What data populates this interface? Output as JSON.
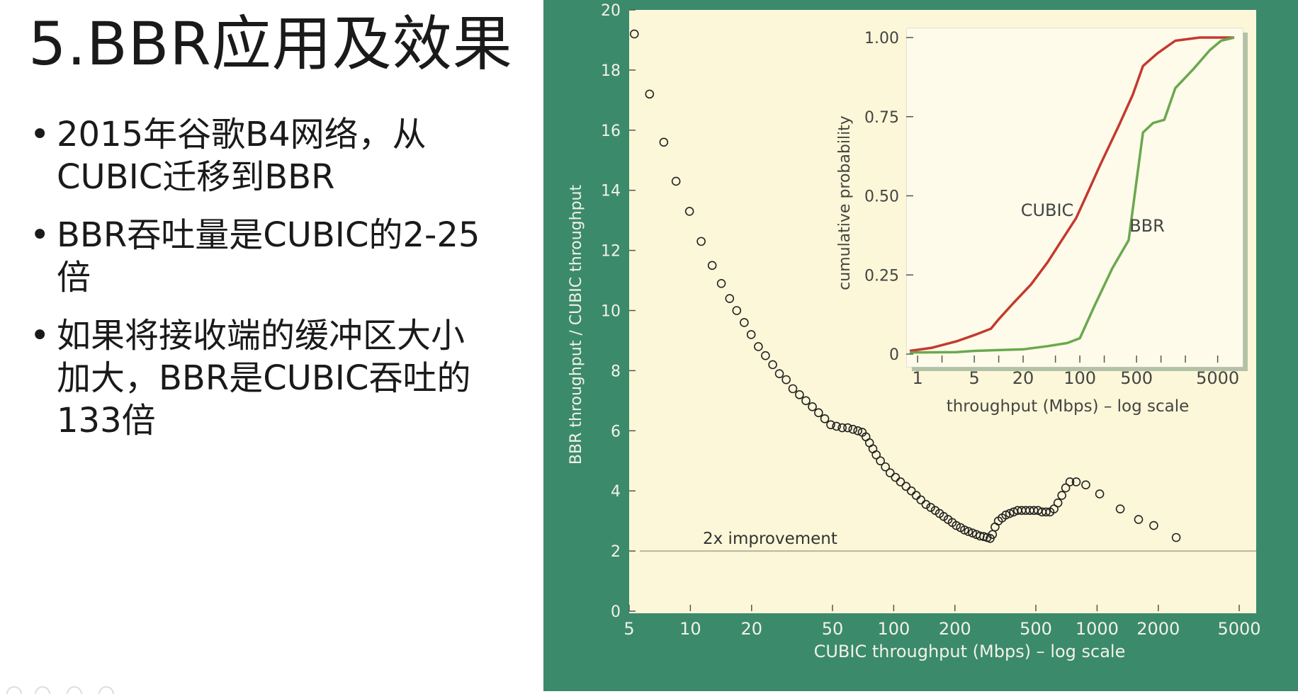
{
  "slide": {
    "title": "5.BBR应用及效果",
    "bullets": [
      "2015年谷歌B4网络，从CUBIC迁移到BBR",
      "BBR吞吐量是CUBIC的2-25倍",
      "如果将接收端的缓冲区大小加大，BBR是CUBIC吞吐的133倍"
    ]
  },
  "colors": {
    "frame": "#3b8a6c",
    "panel": "#fcf7d8",
    "cubic": "#c4392e",
    "bbr": "#6aa84f",
    "marker": "#222222",
    "axis_text": "#f2f2e6"
  },
  "chart_data": [
    {
      "type": "scatter",
      "xlabel": "CUBIC throughput (Mbps) – log scale",
      "ylabel": "BBR throughput / CUBIC throughput",
      "xscale": "log",
      "xlim": [
        5,
        5000
      ],
      "ylim": [
        0,
        20
      ],
      "xticks": [
        5,
        10,
        20,
        50,
        100,
        200,
        500,
        1000,
        2000,
        5000
      ],
      "yticks": [
        0,
        2,
        4,
        6,
        8,
        10,
        12,
        14,
        16,
        18,
        20
      ],
      "reference_line": {
        "y": 2,
        "label": "2x improvement"
      },
      "points": [
        [
          5.3,
          19.2
        ],
        [
          6.3,
          17.2
        ],
        [
          7.4,
          15.6
        ],
        [
          8.5,
          14.3
        ],
        [
          9.9,
          13.3
        ],
        [
          11.3,
          12.3
        ],
        [
          12.8,
          11.5
        ],
        [
          14.2,
          10.9
        ],
        [
          15.6,
          10.4
        ],
        [
          16.9,
          10.0
        ],
        [
          18.4,
          9.6
        ],
        [
          19.9,
          9.2
        ],
        [
          21.6,
          8.8
        ],
        [
          23.4,
          8.5
        ],
        [
          25.4,
          8.2
        ],
        [
          27.4,
          7.9
        ],
        [
          29.6,
          7.7
        ],
        [
          31.9,
          7.4
        ],
        [
          34.4,
          7.2
        ],
        [
          37.0,
          7.0
        ],
        [
          39.8,
          6.8
        ],
        [
          42.7,
          6.6
        ],
        [
          45.8,
          6.4
        ],
        [
          49.0,
          6.2
        ],
        [
          52.3,
          6.15
        ],
        [
          55.8,
          6.1
        ],
        [
          59.4,
          6.1
        ],
        [
          63.0,
          6.05
        ],
        [
          66.6,
          6.0
        ],
        [
          70.0,
          5.95
        ],
        [
          73.0,
          5.8
        ],
        [
          76.0,
          5.6
        ],
        [
          79.0,
          5.4
        ],
        [
          82.0,
          5.2
        ],
        [
          86.0,
          5.0
        ],
        [
          91.0,
          4.8
        ],
        [
          96.0,
          4.6
        ],
        [
          102.0,
          4.45
        ],
        [
          108.0,
          4.3
        ],
        [
          115.0,
          4.15
        ],
        [
          122.0,
          4.0
        ],
        [
          129.0,
          3.85
        ],
        [
          136.0,
          3.7
        ],
        [
          144.0,
          3.55
        ],
        [
          152.0,
          3.45
        ],
        [
          160.0,
          3.35
        ],
        [
          168.0,
          3.25
        ],
        [
          176.0,
          3.15
        ],
        [
          185.0,
          3.05
        ],
        [
          194.0,
          2.95
        ],
        [
          203.0,
          2.85
        ],
        [
          213.0,
          2.78
        ],
        [
          223.0,
          2.7
        ],
        [
          233.0,
          2.65
        ],
        [
          244.0,
          2.6
        ],
        [
          255.0,
          2.55
        ],
        [
          266.0,
          2.5
        ],
        [
          277.0,
          2.48
        ],
        [
          288.0,
          2.45
        ],
        [
          298.0,
          2.42
        ],
        [
          306.0,
          2.55
        ],
        [
          315.0,
          2.8
        ],
        [
          327.0,
          3.0
        ],
        [
          341.0,
          3.1
        ],
        [
          356.0,
          3.2
        ],
        [
          372.0,
          3.25
        ],
        [
          389.0,
          3.3
        ],
        [
          407.0,
          3.35
        ],
        [
          426.0,
          3.35
        ],
        [
          446.0,
          3.35
        ],
        [
          467.0,
          3.35
        ],
        [
          489.0,
          3.35
        ],
        [
          512.0,
          3.35
        ],
        [
          536.0,
          3.3
        ],
        [
          561.0,
          3.3
        ],
        [
          587.0,
          3.3
        ],
        [
          614.0,
          3.4
        ],
        [
          642.0,
          3.6
        ],
        [
          671.0,
          3.85
        ],
        [
          701.0,
          4.1
        ],
        [
          735.0,
          4.3
        ],
        [
          790.0,
          4.3
        ],
        [
          880.0,
          4.2
        ],
        [
          1030.0,
          3.9
        ],
        [
          1300.0,
          3.4
        ],
        [
          1600.0,
          3.05
        ],
        [
          1900.0,
          2.85
        ],
        [
          2450.0,
          2.45
        ]
      ]
    },
    {
      "type": "line",
      "xlabel": "throughput (Mbps) – log scale",
      "ylabel": "cumulative probability",
      "xscale": "log",
      "xlim": [
        0.8,
        8000
      ],
      "ylim": [
        0,
        1.0
      ],
      "xticks": [
        1,
        5,
        20,
        100,
        500,
        5000
      ],
      "yticks": [
        0,
        0.25,
        0.5,
        0.75,
        1.0
      ],
      "ytick_labels": [
        "0",
        "0.25",
        "0.50",
        "0.75",
        "1.00"
      ],
      "series": [
        {
          "name": "CUBIC",
          "color": "#c4392e",
          "points": [
            [
              0.8,
              0.01
            ],
            [
              1.5,
              0.02
            ],
            [
              3,
              0.04
            ],
            [
              5,
              0.06
            ],
            [
              8,
              0.08
            ],
            [
              10,
              0.11
            ],
            [
              15,
              0.16
            ],
            [
              25,
              0.22
            ],
            [
              40,
              0.29
            ],
            [
              60,
              0.36
            ],
            [
              90,
              0.43
            ],
            [
              120,
              0.5
            ],
            [
              180,
              0.6
            ],
            [
              300,
              0.72
            ],
            [
              450,
              0.82
            ],
            [
              600,
              0.91
            ],
            [
              900,
              0.95
            ],
            [
              1500,
              0.99
            ],
            [
              3000,
              1.0
            ],
            [
              8000,
              1.0
            ]
          ]
        },
        {
          "name": "BBR",
          "color": "#6aa84f",
          "points": [
            [
              0.8,
              0.005
            ],
            [
              3,
              0.006
            ],
            [
              5,
              0.01
            ],
            [
              20,
              0.015
            ],
            [
              40,
              0.025
            ],
            [
              70,
              0.035
            ],
            [
              100,
              0.05
            ],
            [
              150,
              0.15
            ],
            [
              250,
              0.27
            ],
            [
              400,
              0.36
            ],
            [
              600,
              0.7
            ],
            [
              800,
              0.73
            ],
            [
              1100,
              0.74
            ],
            [
              1500,
              0.84
            ],
            [
              2500,
              0.9
            ],
            [
              4000,
              0.96
            ],
            [
              5500,
              0.99
            ],
            [
              8000,
              1.0
            ]
          ]
        }
      ]
    }
  ]
}
